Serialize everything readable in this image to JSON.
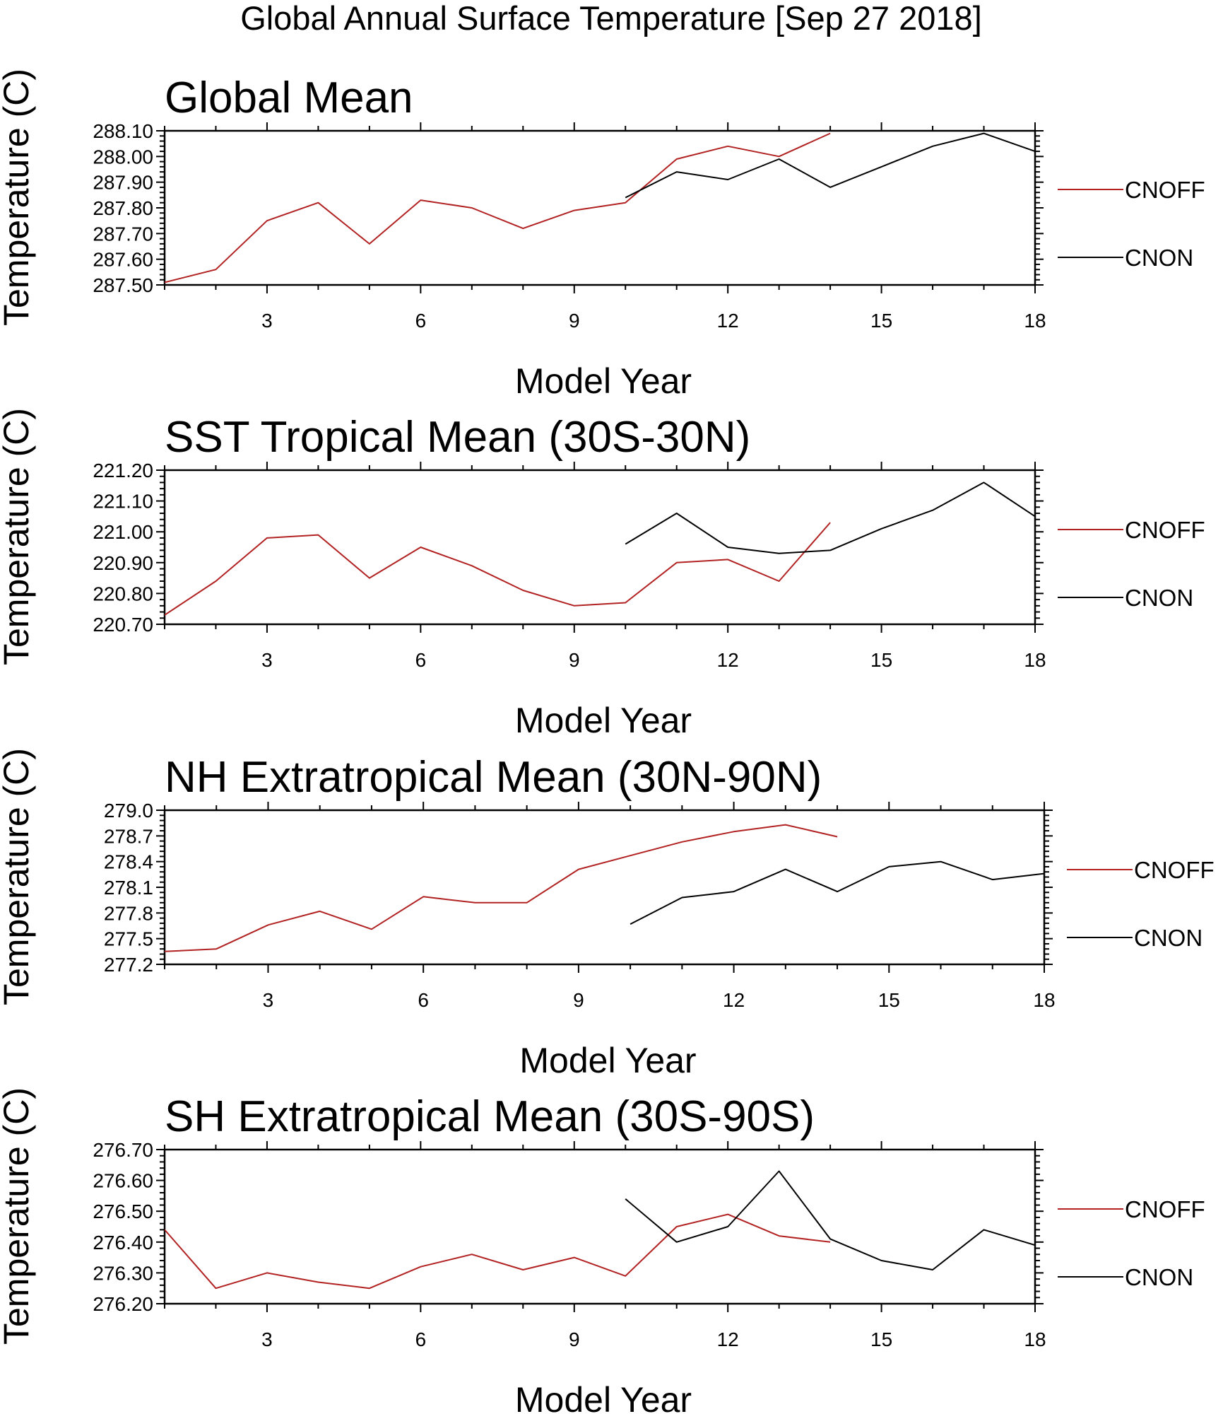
{
  "figure_title": "Global Annual Surface Temperature [Sep 27 2018]",
  "colors": {
    "CNOFF": "#b22222",
    "CNON": "#000000"
  },
  "chart_data": [
    {
      "type": "line",
      "title": "Global Mean",
      "xlabel": "Model Year",
      "ylabel": "Temperature (C)",
      "xlim": [
        1,
        18
      ],
      "ylim": [
        287.5,
        288.1
      ],
      "xticks": [
        3,
        6,
        9,
        12,
        15,
        18
      ],
      "yticks": [
        "287.50",
        "287.60",
        "287.70",
        "287.80",
        "287.90",
        "288.00",
        "288.10"
      ],
      "series": [
        {
          "name": "CNOFF",
          "x": [
            1,
            2,
            3,
            4,
            5,
            6,
            7,
            8,
            9,
            10,
            11,
            12,
            13,
            14
          ],
          "values": [
            287.51,
            287.56,
            287.75,
            287.82,
            287.66,
            287.83,
            287.8,
            287.72,
            287.79,
            287.82,
            287.99,
            288.04,
            288.0,
            288.09
          ]
        },
        {
          "name": "CNON",
          "x": [
            10,
            11,
            12,
            13,
            14,
            15,
            16,
            17,
            18
          ],
          "values": [
            287.84,
            287.94,
            287.91,
            287.99,
            287.88,
            287.96,
            288.04,
            288.09,
            288.02
          ]
        }
      ]
    },
    {
      "type": "line",
      "title": "SST Tropical Mean (30S-30N)",
      "xlabel": "Model Year",
      "ylabel": "Temperature (C)",
      "xlim": [
        1,
        18
      ],
      "ylim": [
        220.7,
        221.2
      ],
      "xticks": [
        3,
        6,
        9,
        12,
        15,
        18
      ],
      "yticks": [
        "220.70",
        "220.80",
        "220.90",
        "221.00",
        "221.10",
        "221.20"
      ],
      "series": [
        {
          "name": "CNOFF",
          "x": [
            1,
            2,
            3,
            4,
            5,
            6,
            7,
            8,
            9,
            10,
            11,
            12,
            13,
            14
          ],
          "values": [
            220.73,
            220.84,
            220.98,
            220.99,
            220.85,
            220.95,
            220.89,
            220.81,
            220.76,
            220.77,
            220.9,
            220.91,
            220.84,
            221.03
          ]
        },
        {
          "name": "CNON",
          "x": [
            10,
            11,
            12,
            13,
            14,
            15,
            16,
            17,
            18
          ],
          "values": [
            220.96,
            221.06,
            220.95,
            220.93,
            220.94,
            221.01,
            221.07,
            221.16,
            221.05
          ]
        }
      ]
    },
    {
      "type": "line",
      "title": "NH Extratropical Mean (30N-90N)",
      "xlabel": "Model Year",
      "ylabel": "Temperature (C)",
      "xlim": [
        1,
        18
      ],
      "ylim": [
        277.2,
        279.0
      ],
      "xticks": [
        3,
        6,
        9,
        12,
        15,
        18
      ],
      "yticks": [
        "277.2",
        "277.5",
        "277.8",
        "278.1",
        "278.4",
        "278.7",
        "279.0"
      ],
      "series": [
        {
          "name": "CNOFF",
          "x": [
            1,
            2,
            3,
            4,
            5,
            6,
            7,
            8,
            9,
            10,
            11,
            12,
            13,
            14
          ],
          "values": [
            277.35,
            277.38,
            277.66,
            277.82,
            277.61,
            277.99,
            277.92,
            277.92,
            278.31,
            278.47,
            278.63,
            278.75,
            278.83,
            278.69
          ]
        },
        {
          "name": "CNON",
          "x": [
            10,
            11,
            12,
            13,
            14,
            15,
            16,
            17,
            18
          ],
          "values": [
            277.67,
            277.98,
            278.05,
            278.31,
            278.05,
            278.34,
            278.4,
            278.19,
            278.26
          ]
        }
      ]
    },
    {
      "type": "line",
      "title": "SH Extratropical Mean (30S-90S)",
      "xlabel": "Model Year",
      "ylabel": "Temperature (C)",
      "xlim": [
        1,
        18
      ],
      "ylim": [
        276.2,
        276.7
      ],
      "xticks": [
        3,
        6,
        9,
        12,
        15,
        18
      ],
      "yticks": [
        "276.20",
        "276.30",
        "276.40",
        "276.50",
        "276.60",
        "276.70"
      ],
      "series": [
        {
          "name": "CNOFF",
          "x": [
            1,
            2,
            3,
            4,
            5,
            6,
            7,
            8,
            9,
            10,
            11,
            12,
            13,
            14
          ],
          "values": [
            276.44,
            276.25,
            276.3,
            276.27,
            276.25,
            276.32,
            276.36,
            276.31,
            276.35,
            276.29,
            276.45,
            276.49,
            276.42,
            276.4
          ]
        },
        {
          "name": "CNON",
          "x": [
            10,
            11,
            12,
            13,
            14,
            15,
            16,
            17,
            18
          ],
          "values": [
            276.54,
            276.4,
            276.45,
            276.63,
            276.41,
            276.34,
            276.31,
            276.44,
            276.39
          ]
        }
      ]
    }
  ]
}
